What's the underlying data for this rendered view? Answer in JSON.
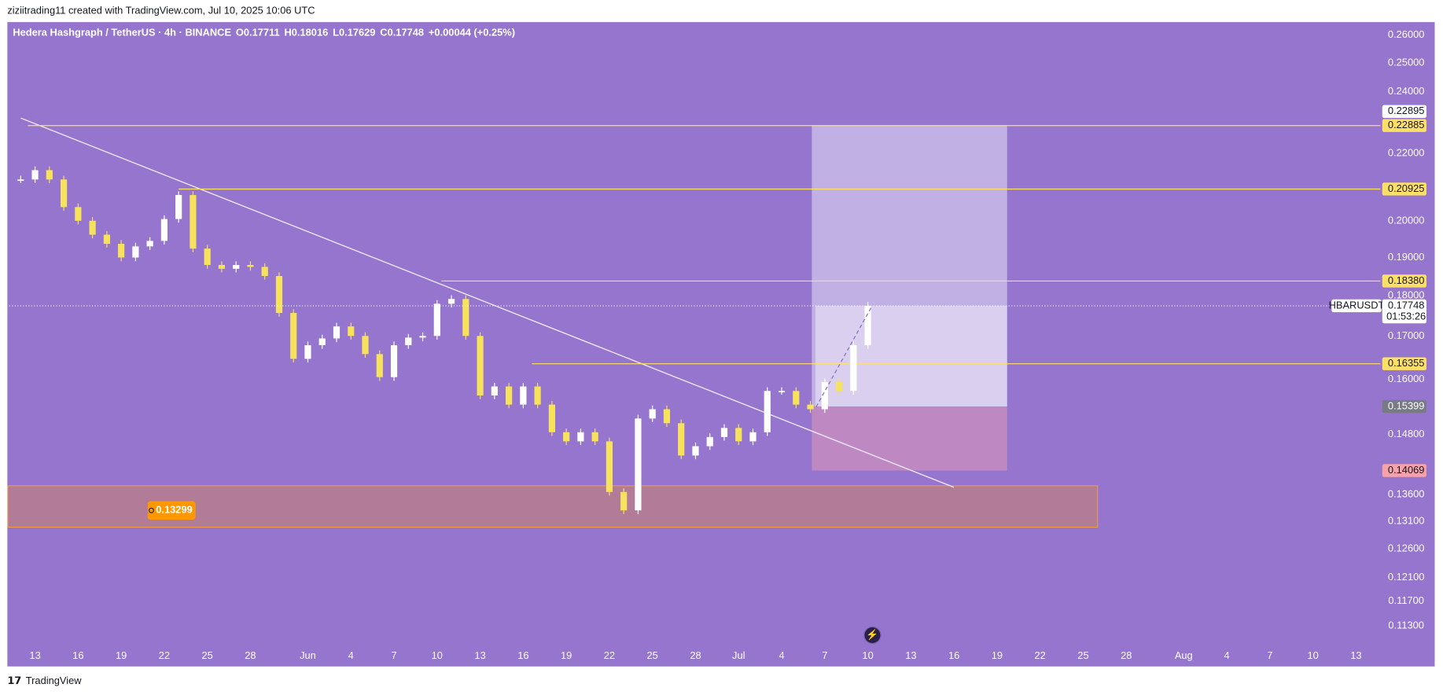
{
  "header": {
    "credit": "ziziitrading11 created with TradingView.com, Jul 10, 2025 10:06 UTC",
    "symbol_line": "Hedera Hashgraph / TetherUS · 4h · BINANCE",
    "open": "O0.17711",
    "high": "H0.18016",
    "low": "L0.17629",
    "close": "C0.17748",
    "change": "+0.00044 (+0.25%)"
  },
  "chart_data": {
    "type": "candlestick",
    "log_scale": true,
    "background": "#9575cd",
    "up_color": "#ffffff",
    "down_color": "#f7e25c",
    "x": [
      -1,
      0,
      1,
      2,
      3,
      4,
      5,
      6,
      7,
      8,
      9,
      10,
      11,
      12,
      13,
      14,
      15,
      16,
      17,
      18,
      19,
      20,
      21,
      22,
      23,
      24,
      25,
      26,
      27,
      28,
      29,
      30,
      31,
      32,
      33,
      34,
      35,
      36,
      37,
      38,
      39,
      40,
      41,
      42,
      43,
      44,
      45,
      46,
      47,
      48,
      49,
      50,
      51,
      52,
      53,
      54,
      55,
      56,
      57,
      58
    ],
    "values": [
      0.2121,
      0.2149,
      0.2121,
      0.204,
      0.2001,
      0.1962,
      0.1937,
      0.19,
      0.193,
      0.1945,
      0.2006,
      0.2075,
      0.1924,
      0.188,
      0.187,
      0.188,
      0.1875,
      0.1851,
      0.1757,
      0.1647,
      0.1679,
      0.1695,
      0.1724,
      0.1701,
      0.1658,
      0.1605,
      0.1679,
      0.1697,
      0.1701,
      0.178,
      0.1792,
      0.1701,
      0.1564,
      0.1584,
      0.1544,
      0.1584,
      0.1544,
      0.1485,
      0.1466,
      0.1485,
      0.1466,
      0.1365,
      0.133,
      0.1514,
      0.1534,
      0.1504,
      0.1437,
      0.1456,
      0.1475,
      0.1494,
      0.1466,
      0.1485,
      0.1574,
      0.1574,
      0.1544,
      0.1534,
      0.1594,
      0.1574,
      0.1679,
      0.1775
    ],
    "xlim": [
      -1.8,
      93.7
    ],
    "xticks": [
      {
        "value": 0,
        "label": "13"
      },
      {
        "value": 3,
        "label": "16"
      },
      {
        "value": 6,
        "label": "19"
      },
      {
        "value": 9,
        "label": "22"
      },
      {
        "value": 12,
        "label": "25"
      },
      {
        "value": 15,
        "label": "28"
      },
      {
        "value": 19,
        "label": "Jun"
      },
      {
        "value": 22,
        "label": "4"
      },
      {
        "value": 25,
        "label": "7"
      },
      {
        "value": 28,
        "label": "10"
      },
      {
        "value": 31,
        "label": "13"
      },
      {
        "value": 34,
        "label": "16"
      },
      {
        "value": 37,
        "label": "19"
      },
      {
        "value": 40,
        "label": "22"
      },
      {
        "value": 43,
        "label": "25"
      },
      {
        "value": 46,
        "label": "28"
      },
      {
        "value": 49,
        "label": "Jul"
      },
      {
        "value": 52,
        "label": "4"
      },
      {
        "value": 55,
        "label": "7"
      },
      {
        "value": 58,
        "label": "10"
      },
      {
        "value": 61,
        "label": "13"
      },
      {
        "value": 64,
        "label": "16"
      },
      {
        "value": 67,
        "label": "19"
      },
      {
        "value": 70,
        "label": "22"
      },
      {
        "value": 73,
        "label": "25"
      },
      {
        "value": 76,
        "label": "28"
      },
      {
        "value": 80,
        "label": "Aug"
      },
      {
        "value": 83,
        "label": "4"
      },
      {
        "value": 86,
        "label": "7"
      },
      {
        "value": 89,
        "label": "10"
      },
      {
        "value": 92,
        "label": "13"
      }
    ],
    "ylim": [
      0.107,
      0.2655
    ],
    "yticks": [
      {
        "value": 0.26,
        "label": "0.26000"
      },
      {
        "value": 0.25,
        "label": "0.25000"
      },
      {
        "value": 0.24,
        "label": "0.24000"
      },
      {
        "value": 0.22,
        "label": "0.22000"
      },
      {
        "value": 0.2,
        "label": "0.20000"
      },
      {
        "value": 0.19,
        "label": "0.19000"
      },
      {
        "value": 0.18,
        "label": "0.18000"
      },
      {
        "value": 0.17,
        "label": "0.17000"
      },
      {
        "value": 0.16,
        "label": "0.16000"
      },
      {
        "value": 0.148,
        "label": "0.14800"
      },
      {
        "value": 0.136,
        "label": "0.13600"
      },
      {
        "value": 0.131,
        "label": "0.13100"
      },
      {
        "value": 0.126,
        "label": "0.12600"
      },
      {
        "value": 0.121,
        "label": "0.12100"
      },
      {
        "value": 0.117,
        "label": "0.11700"
      },
      {
        "value": 0.113,
        "label": "0.11300"
      }
    ],
    "level_color": "#ffe066",
    "levels": [
      {
        "value": 0.22885,
        "start": -0.5
      },
      {
        "value": 0.20925,
        "start": 10
      },
      {
        "value": 0.1838,
        "label": "0.18380",
        "start": 28.3
      },
      {
        "value": 0.16355,
        "start": 34.6
      }
    ],
    "trendline": {
      "x": [
        -1,
        64
      ],
      "y": [
        0.2313,
        0.1374
      ]
    },
    "zone": {
      "x": [
        -1.9,
        74
      ],
      "y": [
        0.1299,
        0.1377
      ],
      "label": 0.13299
    },
    "position": {
      "x": [
        54.1,
        67.7
      ],
      "target": 0.22895,
      "entry": 0.15399,
      "stop": 0.14069
    },
    "projection": {
      "x": [
        54.4,
        58.3
      ],
      "y": [
        0.1539,
        0.1775
      ]
    },
    "last_price": {
      "symbol": "HBARUSDT",
      "value": 0.17748,
      "countdown": "01:53:26"
    }
  },
  "footer": {
    "brand": "TradingView"
  }
}
